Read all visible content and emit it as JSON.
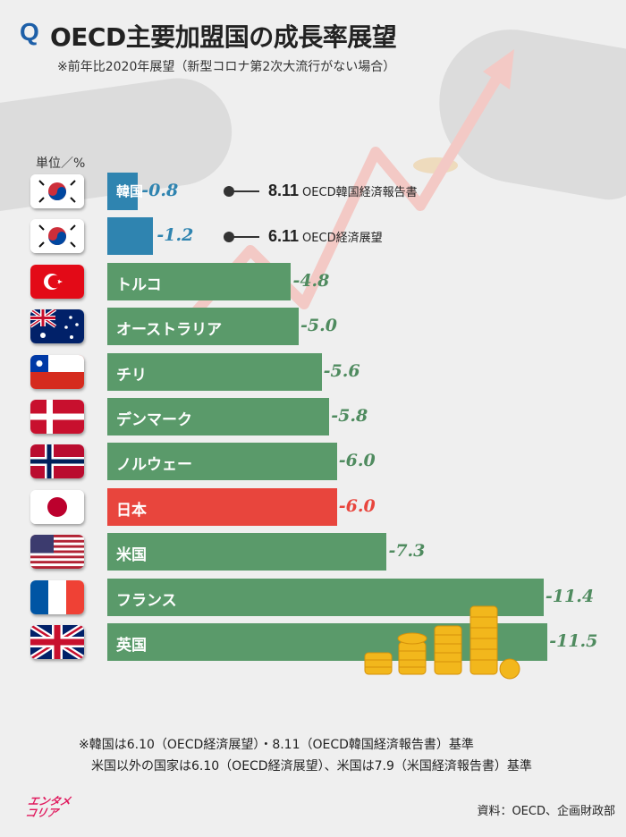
{
  "header": {
    "q_mark": "Q",
    "title": "OECD主要加盟国の成長率展望",
    "subtitle": "※前年比2020年展望（新型コロナ第2次大流行がない場合）"
  },
  "unit_label": "単位／%",
  "notes": [
    {
      "date": "8.11",
      "source": "OECD韓国経済報告書"
    },
    {
      "date": "6.11",
      "source": "OECD経済展望"
    }
  ],
  "colors": {
    "korea": "#2f84b0",
    "other": "#5a9a6a",
    "japan": "#e8453d",
    "value_korea": "#2f84b0",
    "value_other": "#4f8b5f",
    "value_japan": "#e8453d"
  },
  "chart_data": {
    "type": "bar",
    "orientation": "horizontal",
    "categories": [
      "韓国",
      "",
      "トルコ",
      "オーストラリア",
      "チリ",
      "デンマーク",
      "ノルウェー",
      "日本",
      "米国",
      "フランス",
      "英国"
    ],
    "values": [
      -0.8,
      -1.2,
      -4.8,
      -5.0,
      -5.6,
      -5.8,
      -6.0,
      -6.0,
      -7.3,
      -11.4,
      -11.5
    ],
    "value_labels": [
      "-0.8",
      "-1.2",
      "-4.8",
      "-5.0",
      "-5.6",
      "-5.8",
      "-6.0",
      "-6.0",
      "-7.3",
      "-11.4",
      "-11.5"
    ],
    "flags": [
      "korea",
      "korea",
      "turkey",
      "australia",
      "chile",
      "denmark",
      "norway",
      "japan",
      "usa",
      "france",
      "uk"
    ],
    "bar_colors": [
      "korea",
      "korea",
      "other",
      "other",
      "other",
      "other",
      "other",
      "japan",
      "other",
      "other",
      "other"
    ]
  },
  "footnotes": [
    "※韓国は6.10（OECD経済展望）・8.11（OECD韓国経済報告書）基準",
    "米国以外の国家は6.10（OECD経済展望）、米国は7.9（米国経済報告書）基準"
  ],
  "source": "資料：OECD、企画財政部",
  "logo": [
    "エンタメ",
    "コリア"
  ]
}
